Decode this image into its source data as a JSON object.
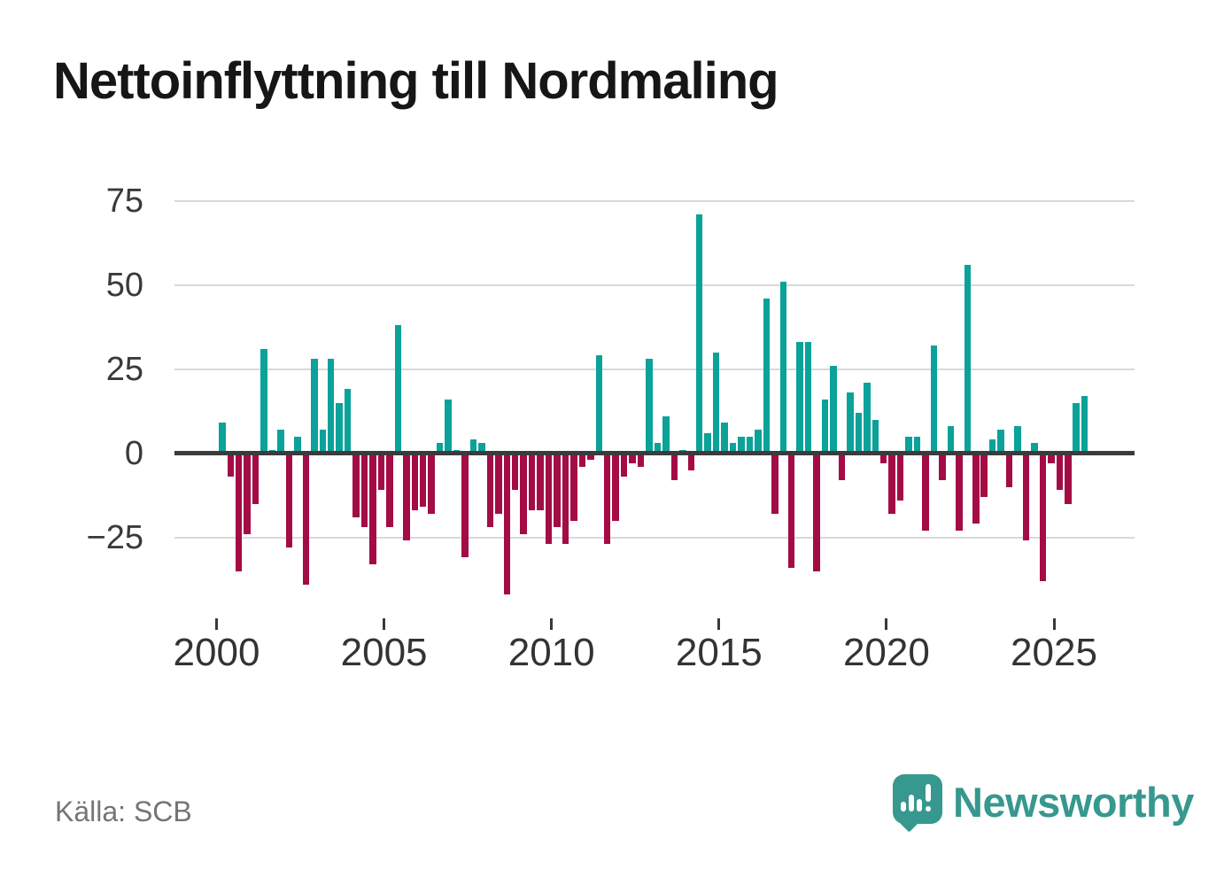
{
  "title": "Nettoinflyttning till Nordmaling",
  "source": "Källa: SCB",
  "logo": {
    "text": "Newsworthy"
  },
  "colors": {
    "positive": "#0ba29a",
    "negative": "#a30c45",
    "axis": "#3b3b3b",
    "grid": "#d9d9d9",
    "title": "#161616",
    "tick_label": "#3a3a3a",
    "source_text": "#757575",
    "logo": "#36988e",
    "background": "#ffffff"
  },
  "chart_data": {
    "type": "bar",
    "title": "Nettoinflyttning till Nordmaling",
    "frequency": "quarterly",
    "x_start": "2000-Q1",
    "x_end": "2025-Q4",
    "grid": true,
    "legend_position": "none",
    "ylim": [
      -45,
      80
    ],
    "y_ticks": [
      75,
      50,
      25,
      0,
      -25
    ],
    "y_tick_labels": [
      "75",
      "50",
      "25",
      "0",
      "−25"
    ],
    "x_tick_years": [
      2000,
      2005,
      2010,
      2015,
      2020,
      2025
    ],
    "x_tick_labels": [
      "2000",
      "2005",
      "2010",
      "2015",
      "2020",
      "2025"
    ],
    "values": [
      9,
      -7,
      -35,
      -24,
      -15,
      31,
      1,
      7,
      -28,
      5,
      -39,
      28,
      7,
      28,
      15,
      19,
      -19,
      -22,
      -33,
      -11,
      -22,
      38,
      -26,
      -17,
      -16,
      -18,
      3,
      16,
      1,
      -31,
      4,
      3,
      -22,
      -18,
      -42,
      -11,
      -24,
      -17,
      -17,
      -27,
      -22,
      -27,
      -20,
      -4,
      -2,
      29,
      -27,
      -20,
      -7,
      -3,
      -4,
      28,
      3,
      11,
      -8,
      1,
      -5,
      71,
      6,
      30,
      9,
      3,
      5,
      5,
      7,
      46,
      -18,
      51,
      -34,
      33,
      33,
      -35,
      16,
      26,
      -8,
      18,
      12,
      21,
      10,
      -3,
      -18,
      -14,
      5,
      5,
      -23,
      32,
      -8,
      8,
      -23,
      56,
      -21,
      -13,
      4,
      7,
      -10,
      8,
      -26,
      3,
      -38,
      -3,
      -11,
      -15,
      15,
      17
    ]
  }
}
